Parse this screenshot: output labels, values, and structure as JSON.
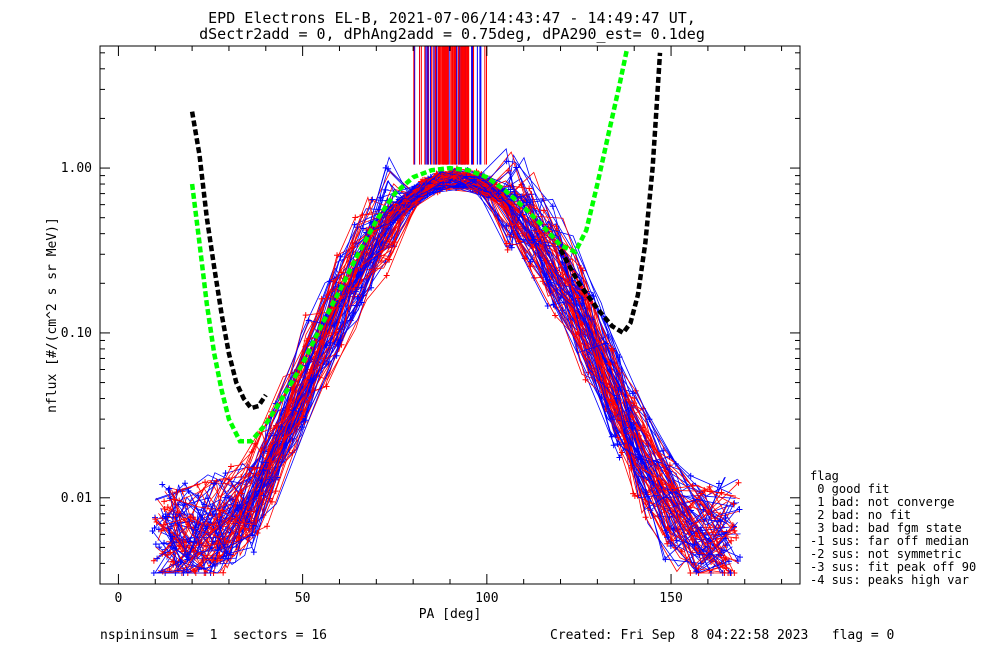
{
  "chart_data": {
    "type": "line",
    "title": "EPD Electrons EL-B, 2021-07-06/14:43:47 - 14:49:47 UT,",
    "subtitle": "dSectr2add = 0, dPhAng2add = 0.75deg, dPA290_est=   0.1deg",
    "xlabel": "PA [deg]",
    "ylabel": "nflux [#/(cm^2 s sr MeV)]",
    "xlim": [
      -5,
      185
    ],
    "ylim": [
      0.003,
      5.5
    ],
    "yscale": "log",
    "x_ticks": [
      0,
      50,
      100,
      150
    ],
    "y_ticks": [
      {
        "value": 0.01,
        "label": "0.01"
      },
      {
        "value": 0.1,
        "label": "0.10"
      },
      {
        "value": 1.0,
        "label": "1.00"
      }
    ],
    "series": [
      {
        "color": "#000000",
        "style": "dashed",
        "x": [
          20,
          22,
          24,
          26,
          28,
          30,
          32,
          34,
          36,
          38,
          40
        ],
        "y": [
          2.2,
          1.2,
          0.5,
          0.25,
          0.13,
          0.075,
          0.05,
          0.04,
          0.035,
          0.036,
          0.042
        ]
      },
      {
        "color": "#000000",
        "style": "dashed",
        "x": [
          120,
          125,
          130,
          134,
          137,
          139,
          141,
          143,
          145,
          146,
          147
        ],
        "y": [
          0.32,
          0.2,
          0.14,
          0.11,
          0.1,
          0.115,
          0.17,
          0.35,
          1.0,
          2.2,
          5.0
        ]
      },
      {
        "color": "#00ff00",
        "style": "dashed",
        "x": [
          20,
          22,
          24,
          26,
          28,
          30,
          33,
          36,
          40,
          45,
          50,
          55,
          60,
          65,
          70,
          75,
          80,
          85,
          90,
          95,
          100,
          105,
          110,
          115,
          120,
          124,
          127,
          130,
          133,
          136,
          138
        ],
        "y": [
          0.8,
          0.35,
          0.15,
          0.075,
          0.045,
          0.03,
          0.022,
          0.022,
          0.028,
          0.042,
          0.065,
          0.11,
          0.18,
          0.3,
          0.48,
          0.7,
          0.88,
          0.97,
          1.0,
          0.97,
          0.88,
          0.73,
          0.58,
          0.45,
          0.34,
          0.31,
          0.42,
          0.8,
          1.6,
          3.2,
          5.2
        ]
      }
    ],
    "legend_title": "flag",
    "legend": [
      " 0 good fit",
      " 1 bad: not converge",
      " 2 bad: no fit",
      " 3 bad: bad fgm state",
      "-1 sus: far off median",
      "-2 sus: not symmetric",
      "-3 sus: fit peak off 90",
      "-4 sus: peaks high var"
    ],
    "legend_position": "bottom-right",
    "colors": {
      "red_traces": "#ff0000",
      "blue_traces": "#0000ff",
      "fit_black": "#000000",
      "fit_green": "#00ff00"
    }
  },
  "footer": {
    "left": "nspininsum =  1  sectors = 16",
    "right": "Created: Fri Sep  8 04:22:58 2023   flag = 0"
  }
}
